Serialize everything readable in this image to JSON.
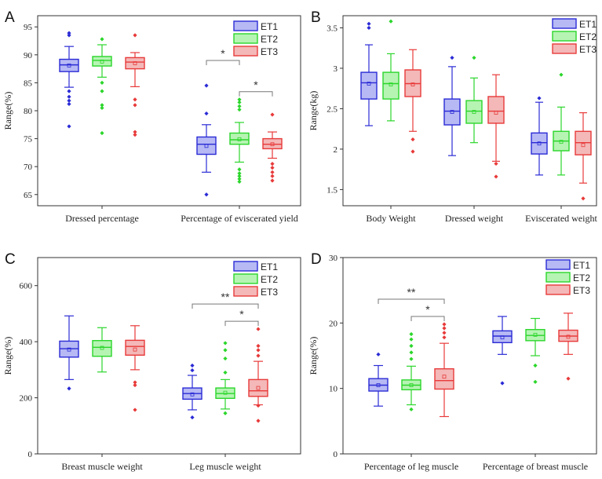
{
  "colors": {
    "ET1": "#2b2bd6",
    "ET2": "#2bd62b",
    "ET3": "#e83a3a",
    "ET1_fill": "#b6b9f4",
    "ET2_fill": "#b6f4b3",
    "ET3_fill": "#f4b8b8"
  },
  "legend": [
    "ET1",
    "ET2",
    "ET3"
  ],
  "chart_data": [
    {
      "panel": "A",
      "type": "box",
      "ylabel": "Range(%)",
      "ylim": [
        63,
        97
      ],
      "yticks": [
        65,
        70,
        75,
        80,
        85,
        90,
        95
      ],
      "categories": [
        "Dressed percentage",
        "Percentage of eviscerated yield"
      ],
      "groups": [
        [
          {
            "series": "ET1",
            "q1": 87.0,
            "median": 88.2,
            "q3": 89.2,
            "mean": 88.1,
            "wlow": 84.2,
            "whigh": 91.5,
            "outliers": [
              83.5,
              82.5,
              81.8,
              81.2,
              77.2,
              93.5,
              93.9
            ]
          },
          {
            "series": "ET2",
            "q1": 88.0,
            "median": 89.0,
            "q3": 89.7,
            "mean": 88.8,
            "wlow": 86.0,
            "whigh": 91.8,
            "outliers": [
              85.0,
              83.5,
              81.0,
              80.5,
              76.0,
              92.8
            ]
          },
          {
            "series": "ET3",
            "q1": 87.5,
            "median": 88.7,
            "q3": 89.5,
            "mean": 88.5,
            "wlow": 84.3,
            "whigh": 90.4,
            "outliers": [
              82.0,
              81.0,
              76.2,
              75.7,
              93.5
            ]
          }
        ],
        [
          {
            "series": "ET1",
            "q1": 72.2,
            "median": 74.0,
            "q3": 75.3,
            "mean": 73.7,
            "wlow": 69.0,
            "whigh": 77.5,
            "outliers": [
              79.5,
              84.5,
              65.0
            ]
          },
          {
            "series": "ET2",
            "q1": 74.0,
            "median": 74.8,
            "q3": 76.0,
            "mean": 74.9,
            "wlow": 70.8,
            "whigh": 77.9,
            "outliers": [
              80.2,
              80.8,
              81.5,
              82.0,
              69.5,
              68.8,
              68.3,
              67.8,
              67.3
            ]
          },
          {
            "series": "ET3",
            "q1": 73.2,
            "median": 74.0,
            "q3": 75.0,
            "mean": 74.0,
            "wlow": 71.5,
            "whigh": 76.2,
            "outliers": [
              79.3,
              70.5,
              69.8,
              69.0,
              68.3,
              67.5
            ]
          }
        ]
      ],
      "brackets": [
        {
          "from": [
            1,
            0
          ],
          "to": [
            1,
            1
          ],
          "label": "*",
          "level": 1
        },
        {
          "from": [
            1,
            1
          ],
          "to": [
            1,
            2
          ],
          "label": "*",
          "level": 0
        }
      ]
    },
    {
      "panel": "B",
      "type": "box",
      "ylabel": "Range(kg)",
      "ylim": [
        1.3,
        3.65
      ],
      "yticks": [
        1.5,
        2.0,
        2.5,
        3.0,
        3.5
      ],
      "categories": [
        "Body Weight",
        "Dressed weight",
        "Eviscerated weight"
      ],
      "groups": [
        [
          {
            "series": "ET1",
            "q1": 2.62,
            "median": 2.82,
            "q3": 2.95,
            "mean": 2.81,
            "wlow": 2.29,
            "whigh": 3.29,
            "outliers": [
              3.5,
              3.55
            ]
          },
          {
            "series": "ET2",
            "q1": 2.62,
            "median": 2.81,
            "q3": 2.95,
            "mean": 2.8,
            "wlow": 2.35,
            "whigh": 3.18,
            "outliers": [
              3.58
            ]
          },
          {
            "series": "ET3",
            "q1": 2.65,
            "median": 2.81,
            "q3": 2.98,
            "mean": 2.8,
            "wlow": 2.22,
            "whigh": 3.23,
            "outliers": [
              2.12,
              1.97
            ]
          }
        ],
        [
          {
            "series": "ET1",
            "q1": 2.3,
            "median": 2.47,
            "q3": 2.62,
            "mean": 2.46,
            "wlow": 1.92,
            "whigh": 3.02,
            "outliers": [
              3.13
            ]
          },
          {
            "series": "ET2",
            "q1": 2.32,
            "median": 2.47,
            "q3": 2.6,
            "mean": 2.46,
            "wlow": 2.08,
            "whigh": 2.88,
            "outliers": [
              3.13
            ]
          },
          {
            "series": "ET3",
            "q1": 2.32,
            "median": 2.47,
            "q3": 2.65,
            "mean": 2.45,
            "wlow": 1.85,
            "whigh": 2.92,
            "outliers": [
              1.82,
              1.66
            ]
          }
        ],
        [
          {
            "series": "ET1",
            "q1": 1.94,
            "median": 2.08,
            "q3": 2.2,
            "mean": 2.07,
            "wlow": 1.68,
            "whigh": 2.58,
            "outliers": [
              2.63
            ]
          },
          {
            "series": "ET2",
            "q1": 1.98,
            "median": 2.1,
            "q3": 2.22,
            "mean": 2.09,
            "wlow": 1.68,
            "whigh": 2.52,
            "outliers": [
              2.92
            ]
          },
          {
            "series": "ET3",
            "q1": 1.93,
            "median": 2.08,
            "q3": 2.22,
            "mean": 2.05,
            "wlow": 1.58,
            "whigh": 2.45,
            "outliers": [
              1.39
            ]
          }
        ]
      ],
      "brackets": []
    },
    {
      "panel": "C",
      "type": "box",
      "ylabel": "Range(%)",
      "ylim": [
        0,
        700
      ],
      "yticks": [
        0,
        200,
        400,
        600
      ],
      "categories": [
        "Breast muscle weight",
        "Leg muscle weight"
      ],
      "groups": [
        [
          {
            "series": "ET1",
            "q1": 345,
            "median": 375,
            "q3": 402,
            "mean": 372,
            "wlow": 265,
            "whigh": 492,
            "outliers": [
              233
            ]
          },
          {
            "series": "ET2",
            "q1": 348,
            "median": 380,
            "q3": 404,
            "mean": 378,
            "wlow": 292,
            "whigh": 450,
            "outliers": []
          },
          {
            "series": "ET3",
            "q1": 352,
            "median": 383,
            "q3": 405,
            "mean": 372,
            "wlow": 300,
            "whigh": 457,
            "outliers": [
              255,
              245,
              157
            ]
          }
        ],
        [
          {
            "series": "ET1",
            "q1": 195,
            "median": 215,
            "q3": 235,
            "mean": 212,
            "wlow": 157,
            "whigh": 280,
            "outliers": [
              298,
              315,
              130
            ]
          },
          {
            "series": "ET2",
            "q1": 198,
            "median": 215,
            "q3": 235,
            "mean": 218,
            "wlow": 160,
            "whigh": 265,
            "outliers": [
              290,
              340,
              370,
              395,
              145
            ]
          },
          {
            "series": "ET3",
            "q1": 205,
            "median": 225,
            "q3": 265,
            "mean": 235,
            "wlow": 175,
            "whigh": 330,
            "outliers": [
              350,
              370,
              385,
              445,
              172,
              118
            ]
          }
        ]
      ],
      "brackets": [
        {
          "from": [
            1,
            0
          ],
          "to": [
            1,
            2
          ],
          "label": "**",
          "level": 1
        },
        {
          "from": [
            1,
            1
          ],
          "to": [
            1,
            2
          ],
          "label": "*",
          "level": 0
        }
      ]
    },
    {
      "panel": "D",
      "type": "box",
      "ylabel": "Range(%)",
      "ylim": [
        0,
        30
      ],
      "yticks": [
        0,
        10,
        20,
        30
      ],
      "categories": [
        "Percentage of leg muscle",
        "Percentage of breast muscle"
      ],
      "groups": [
        [
          {
            "series": "ET1",
            "q1": 9.6,
            "median": 10.5,
            "q3": 11.5,
            "mean": 10.5,
            "wlow": 7.3,
            "whigh": 13.5,
            "outliers": [
              15.2
            ]
          },
          {
            "series": "ET2",
            "q1": 9.8,
            "median": 10.5,
            "q3": 11.3,
            "mean": 10.5,
            "wlow": 7.5,
            "whigh": 13.4,
            "outliers": [
              14.5,
              15.5,
              16.5,
              17.5,
              18.3,
              6.8
            ]
          },
          {
            "series": "ET3",
            "q1": 9.9,
            "median": 11.2,
            "q3": 13.0,
            "mean": 11.8,
            "wlow": 5.7,
            "whigh": 16.9,
            "outliers": [
              17.8,
              18.5,
              19.2,
              19.8
            ]
          }
        ],
        [
          {
            "series": "ET1",
            "q1": 17.0,
            "median": 18.0,
            "q3": 18.8,
            "mean": 17.8,
            "wlow": 15.2,
            "whigh": 21.0,
            "outliers": [
              10.8
            ]
          },
          {
            "series": "ET2",
            "q1": 17.3,
            "median": 18.1,
            "q3": 19.0,
            "mean": 18.2,
            "wlow": 15.0,
            "whigh": 20.7,
            "outliers": [
              13.5,
              11.0
            ]
          },
          {
            "series": "ET3",
            "q1": 17.2,
            "median": 18.0,
            "q3": 18.9,
            "mean": 17.9,
            "wlow": 15.2,
            "whigh": 21.5,
            "outliers": [
              11.5
            ]
          }
        ]
      ],
      "brackets": [
        {
          "from": [
            0,
            0
          ],
          "to": [
            0,
            2
          ],
          "label": "**",
          "level": 1
        },
        {
          "from": [
            0,
            1
          ],
          "to": [
            0,
            2
          ],
          "label": "*",
          "level": 0
        }
      ]
    }
  ]
}
